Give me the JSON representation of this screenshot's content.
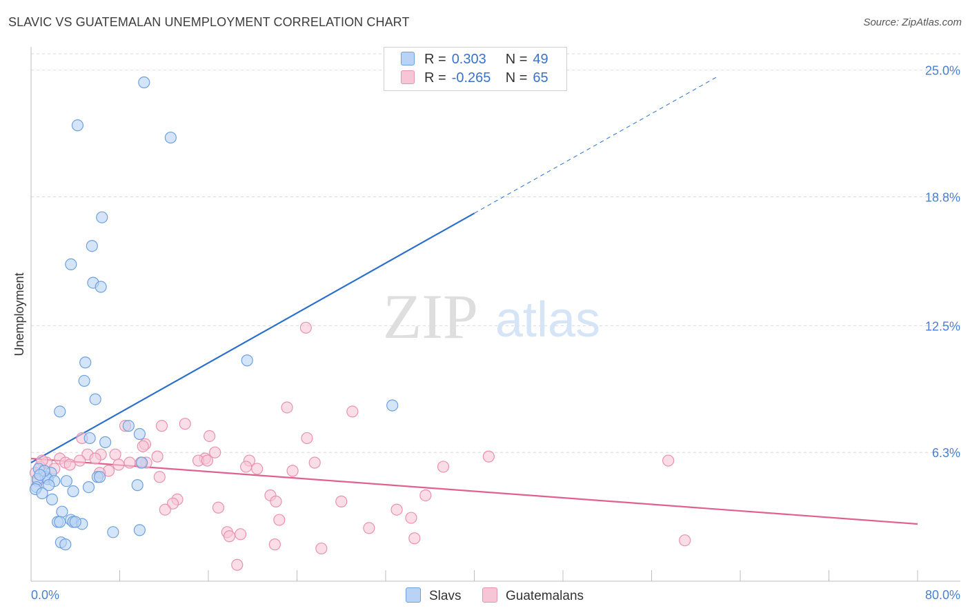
{
  "header": {
    "title": "SLAVIC VS GUATEMALAN UNEMPLOYMENT CORRELATION CHART",
    "source": "Source: ZipAtlas.com"
  },
  "watermark": {
    "zip": "ZIP",
    "atlas": "atlas"
  },
  "colors": {
    "slavs_fill": "#b8d3f5",
    "slavs_stroke": "#6fa0dd",
    "slavs_line": "#2a6fcc",
    "guat_fill": "#f7c6d6",
    "guat_stroke": "#e892ae",
    "guat_line": "#e0608e",
    "grid": "#d8d8d8",
    "axis_text": "#4a7fcf"
  },
  "legend": {
    "rows": [
      {
        "r_label": "R =",
        "r_value": "0.303",
        "n_label": "N =",
        "n_value": "49"
      },
      {
        "r_label": "R =",
        "r_value": "-0.265",
        "n_label": "N =",
        "n_value": "65"
      }
    ],
    "bottom": [
      "Slavs",
      "Guatemalans"
    ]
  },
  "chart_data": {
    "type": "scatter",
    "title": "SLAVIC VS GUATEMALAN UNEMPLOYMENT CORRELATION CHART",
    "xlabel": "",
    "ylabel": "Unemployment",
    "xlim": [
      0,
      80
    ],
    "ylim": [
      0,
      25.8
    ],
    "x_tick_labels": [
      "0.0%",
      "80.0%"
    ],
    "y_ticks": [
      6.3,
      12.5,
      18.8,
      25.0
    ],
    "y_tick_labels": [
      "6.3%",
      "12.5%",
      "18.8%",
      "25.0%"
    ],
    "grid": true,
    "series": [
      {
        "name": "Slavs",
        "r": 0.303,
        "n": 49,
        "trend": {
          "x0": 0,
          "y0": 5.8,
          "x1": 40,
          "y1": 18.0,
          "dashed_to_x": 62,
          "dashed_to_y": 24.7
        },
        "points": [
          [
            10.2,
            24.4
          ],
          [
            4.2,
            22.3
          ],
          [
            12.6,
            21.7
          ],
          [
            6.4,
            17.8
          ],
          [
            5.5,
            16.4
          ],
          [
            3.6,
            15.5
          ],
          [
            5.6,
            14.6
          ],
          [
            6.3,
            14.4
          ],
          [
            19.5,
            10.8
          ],
          [
            4.9,
            10.7
          ],
          [
            4.8,
            9.8
          ],
          [
            5.8,
            8.9
          ],
          [
            32.6,
            8.6
          ],
          [
            2.6,
            8.3
          ],
          [
            8.8,
            7.6
          ],
          [
            9.8,
            7.2
          ],
          [
            5.3,
            7.0
          ],
          [
            6.7,
            6.8
          ],
          [
            10.0,
            5.8
          ],
          [
            0.7,
            5.5
          ],
          [
            1.8,
            5.3
          ],
          [
            1.3,
            5.1
          ],
          [
            1.5,
            5.0
          ],
          [
            0.6,
            5.0
          ],
          [
            2.1,
            4.9
          ],
          [
            3.2,
            4.9
          ],
          [
            6.0,
            5.1
          ],
          [
            6.2,
            5.1
          ],
          [
            1.6,
            4.7
          ],
          [
            0.5,
            4.6
          ],
          [
            0.4,
            4.5
          ],
          [
            5.2,
            4.6
          ],
          [
            9.6,
            4.7
          ],
          [
            3.8,
            4.4
          ],
          [
            1.0,
            4.3
          ],
          [
            1.9,
            4.0
          ],
          [
            2.8,
            3.4
          ],
          [
            2.4,
            2.9
          ],
          [
            2.6,
            2.9
          ],
          [
            3.6,
            3.0
          ],
          [
            3.8,
            2.9
          ],
          [
            4.6,
            2.8
          ],
          [
            7.4,
            2.4
          ],
          [
            9.8,
            2.5
          ],
          [
            2.7,
            1.9
          ],
          [
            3.1,
            1.8
          ],
          [
            4.0,
            2.9
          ],
          [
            1.2,
            5.4
          ],
          [
            0.8,
            5.2
          ]
        ]
      },
      {
        "name": "Guatemalans",
        "r": -0.265,
        "n": 65,
        "trend": {
          "x0": 0,
          "y0": 6.0,
          "x1": 80,
          "y1": 2.8
        },
        "points": [
          [
            24.8,
            12.4
          ],
          [
            23.1,
            8.5
          ],
          [
            29.0,
            8.3
          ],
          [
            13.9,
            7.7
          ],
          [
            11.8,
            7.6
          ],
          [
            8.5,
            7.6
          ],
          [
            16.1,
            7.1
          ],
          [
            24.9,
            7.0
          ],
          [
            4.6,
            7.0
          ],
          [
            10.3,
            6.7
          ],
          [
            10.1,
            6.6
          ],
          [
            16.6,
            6.3
          ],
          [
            5.1,
            6.2
          ],
          [
            6.3,
            6.2
          ],
          [
            7.6,
            6.2
          ],
          [
            2.6,
            6.0
          ],
          [
            5.8,
            6.0
          ],
          [
            11.4,
            6.1
          ],
          [
            41.3,
            6.1
          ],
          [
            15.7,
            6.0
          ],
          [
            15.1,
            5.9
          ],
          [
            19.7,
            5.9
          ],
          [
            25.6,
            5.8
          ],
          [
            3.1,
            5.8
          ],
          [
            1.4,
            5.8
          ],
          [
            3.5,
            5.7
          ],
          [
            7.9,
            5.7
          ],
          [
            8.9,
            5.8
          ],
          [
            10.4,
            5.8
          ],
          [
            9.9,
            5.8
          ],
          [
            57.5,
            5.9
          ],
          [
            0.8,
            5.6
          ],
          [
            2.1,
            5.5
          ],
          [
            19.4,
            5.6
          ],
          [
            37.2,
            5.6
          ],
          [
            20.4,
            5.5
          ],
          [
            23.6,
            5.4
          ],
          [
            7.0,
            5.4
          ],
          [
            6.2,
            5.3
          ],
          [
            11.6,
            5.1
          ],
          [
            0.4,
            5.3
          ],
          [
            0.6,
            4.9
          ],
          [
            21.6,
            4.2
          ],
          [
            35.6,
            4.2
          ],
          [
            13.2,
            4.0
          ],
          [
            12.8,
            3.8
          ],
          [
            22.1,
            3.9
          ],
          [
            28.0,
            3.9
          ],
          [
            12.1,
            3.5
          ],
          [
            16.9,
            3.6
          ],
          [
            33.0,
            3.5
          ],
          [
            34.3,
            3.1
          ],
          [
            22.4,
            3.0
          ],
          [
            30.5,
            2.6
          ],
          [
            17.7,
            2.4
          ],
          [
            18.9,
            2.3
          ],
          [
            17.9,
            2.2
          ],
          [
            34.6,
            2.1
          ],
          [
            59.0,
            2.0
          ],
          [
            22.0,
            1.8
          ],
          [
            26.2,
            1.6
          ],
          [
            18.6,
            0.8
          ],
          [
            1.0,
            5.9
          ],
          [
            4.4,
            5.9
          ],
          [
            15.9,
            5.9
          ]
        ]
      }
    ]
  }
}
